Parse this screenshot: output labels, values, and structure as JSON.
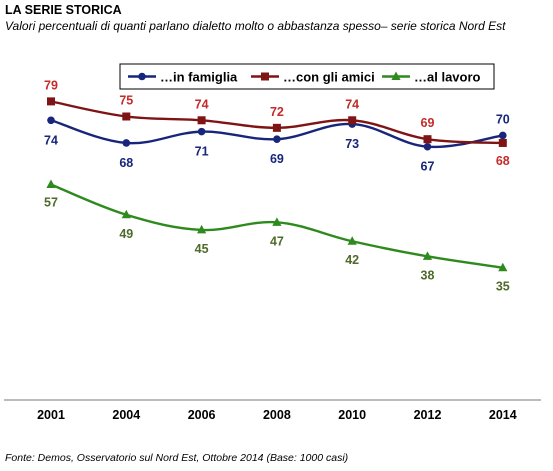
{
  "title": "LA SERIE STORICA",
  "subtitle": "Valori percentuali di quanti parlano dialetto molto o abbastanza spesso– serie storica Nord Est",
  "footer": "Fonte: Demos, Osservatorio sul Nord Est, Ottobre 2014 (Base: 1000 casi)",
  "chart_data": {
    "type": "line",
    "title": "",
    "xlabel": "",
    "ylabel": "",
    "categories": [
      "2001",
      "2004",
      "2006",
      "2008",
      "2010",
      "2012",
      "2014"
    ],
    "legend": "top-right",
    "grid": false,
    "ylim": [
      0,
      90
    ],
    "series": [
      {
        "name": "…in famiglia",
        "color": "#17267a",
        "label_color": "#17267a",
        "marker": "circle",
        "values": [
          74,
          68,
          71,
          69,
          73,
          67,
          70
        ]
      },
      {
        "name": "…con gli amici",
        "color": "#7f1414",
        "label_color": "#c42b2b",
        "marker": "square",
        "values": [
          79,
          75,
          74,
          72,
          74,
          69,
          68
        ]
      },
      {
        "name": "…al lavoro",
        "color": "#2f8a1e",
        "label_color": "#4f6b2b",
        "marker": "triangle",
        "values": [
          57,
          49,
          45,
          47,
          42,
          38,
          35
        ]
      }
    ]
  }
}
